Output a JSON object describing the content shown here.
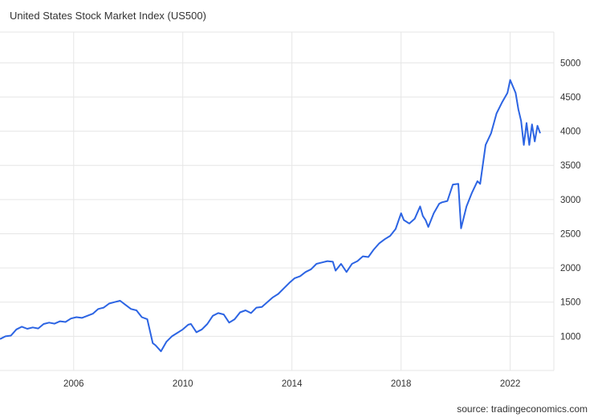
{
  "title": "United States Stock Market Index (US500)",
  "source": "source: tradingeconomics.com",
  "colors": {
    "series": "#2c64e3",
    "grid": "#e6e6e6",
    "text": "#333333"
  },
  "chart_data": {
    "type": "line",
    "title": "United States Stock Market Index (US500)",
    "xlabel": "",
    "ylabel": "",
    "grid": true,
    "y_axis_side": "right",
    "ylim": [
      500,
      5450
    ],
    "y_ticks": [
      1000,
      1500,
      2000,
      2500,
      3000,
      3500,
      4000,
      4500,
      5000
    ],
    "x_ticks": [
      2006,
      2010,
      2014,
      2018,
      2022
    ],
    "xlim": [
      2003.3,
      2023.6
    ],
    "series": [
      {
        "name": "",
        "x": [
          2003.3,
          2003.5,
          2003.7,
          2003.9,
          2004.1,
          2004.3,
          2004.5,
          2004.7,
          2004.9,
          2005.1,
          2005.3,
          2005.5,
          2005.7,
          2005.9,
          2006.1,
          2006.3,
          2006.5,
          2006.7,
          2006.9,
          2007.1,
          2007.3,
          2007.5,
          2007.7,
          2007.9,
          2008.1,
          2008.3,
          2008.5,
          2008.7,
          2008.9,
          2009.0,
          2009.2,
          2009.4,
          2009.6,
          2009.8,
          2010.0,
          2010.2,
          2010.3,
          2010.5,
          2010.7,
          2010.9,
          2011.1,
          2011.3,
          2011.5,
          2011.7,
          2011.9,
          2012.1,
          2012.3,
          2012.5,
          2012.7,
          2012.9,
          2013.1,
          2013.3,
          2013.5,
          2013.7,
          2013.9,
          2014.1,
          2014.3,
          2014.5,
          2014.7,
          2014.9,
          2015.1,
          2015.3,
          2015.5,
          2015.6,
          2015.8,
          2016.0,
          2016.2,
          2016.4,
          2016.6,
          2016.8,
          2017.0,
          2017.2,
          2017.4,
          2017.6,
          2017.8,
          2018.0,
          2018.1,
          2018.3,
          2018.5,
          2018.7,
          2018.8,
          2018.9,
          2019.0,
          2019.2,
          2019.4,
          2019.5,
          2019.7,
          2019.9,
          2020.1,
          2020.2,
          2020.4,
          2020.6,
          2020.8,
          2020.9,
          2021.1,
          2021.3,
          2021.5,
          2021.7,
          2021.9,
          2022.0,
          2022.2,
          2022.3,
          2022.4,
          2022.5,
          2022.6,
          2022.7,
          2022.8,
          2022.9,
          2023.0,
          2023.1
        ],
        "y": [
          960,
          1000,
          1010,
          1100,
          1140,
          1110,
          1130,
          1115,
          1180,
          1200,
          1185,
          1220,
          1210,
          1260,
          1280,
          1270,
          1300,
          1330,
          1400,
          1420,
          1480,
          1500,
          1520,
          1460,
          1400,
          1380,
          1280,
          1250,
          900,
          870,
          780,
          920,
          1000,
          1050,
          1100,
          1170,
          1180,
          1060,
          1100,
          1180,
          1300,
          1340,
          1320,
          1200,
          1250,
          1350,
          1380,
          1340,
          1420,
          1430,
          1500,
          1570,
          1620,
          1700,
          1780,
          1850,
          1880,
          1940,
          1980,
          2060,
          2080,
          2100,
          2090,
          1960,
          2060,
          1940,
          2060,
          2100,
          2170,
          2160,
          2270,
          2360,
          2420,
          2470,
          2570,
          2800,
          2700,
          2650,
          2720,
          2900,
          2760,
          2700,
          2600,
          2800,
          2940,
          2960,
          2980,
          3220,
          3230,
          2580,
          2900,
          3100,
          3270,
          3230,
          3800,
          3970,
          4260,
          4420,
          4560,
          4750,
          4560,
          4320,
          4150,
          3800,
          4120,
          3800,
          4100,
          3850,
          4080,
          3970
        ]
      }
    ]
  }
}
